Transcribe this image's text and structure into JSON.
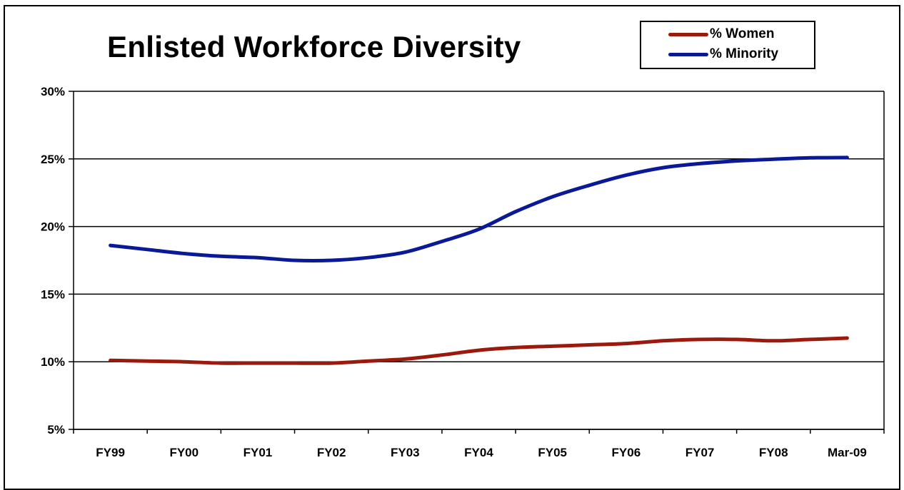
{
  "chart_data": {
    "type": "line",
    "title": "Enlisted Workforce Diversity",
    "categories": [
      "FY99",
      "FY00",
      "FY01",
      "FY02",
      "FY03",
      "FY04",
      "FY05",
      "FY06",
      "FY07",
      "FY08",
      "Mar-09"
    ],
    "series": [
      {
        "name": "% Women",
        "color": "#9b1a0e",
        "x": [
          0,
          0.5,
          1,
          1.5,
          2,
          2.5,
          3,
          3.5,
          4,
          4.5,
          5,
          5.5,
          6,
          6.5,
          7,
          7.5,
          8,
          8.5,
          9,
          9.5,
          10
        ],
        "values": [
          10.1,
          10.05,
          10.0,
          9.9,
          9.9,
          9.9,
          9.9,
          10.05,
          10.2,
          10.5,
          10.85,
          11.05,
          11.15,
          11.25,
          11.35,
          11.55,
          11.65,
          11.65,
          11.55,
          11.65,
          11.75
        ]
      },
      {
        "name": "% Minority",
        "color": "#0a1a96",
        "x": [
          0,
          0.5,
          1,
          1.5,
          2,
          2.5,
          3,
          3.5,
          4,
          4.5,
          5,
          5.5,
          6,
          6.5,
          7,
          7.5,
          8,
          8.5,
          9,
          9.5,
          10
        ],
        "values": [
          18.6,
          18.3,
          18.0,
          17.8,
          17.7,
          17.5,
          17.5,
          17.7,
          18.1,
          18.9,
          19.8,
          21.1,
          22.2,
          23.05,
          23.8,
          24.35,
          24.65,
          24.85,
          24.98,
          25.08,
          25.1
        ]
      }
    ],
    "yticks": [
      "5%",
      "10%",
      "15%",
      "20%",
      "25%",
      "30%"
    ],
    "ylim": [
      5,
      30
    ],
    "xlabel": "",
    "ylabel": "",
    "grid": true,
    "legend_position": "top-right"
  }
}
